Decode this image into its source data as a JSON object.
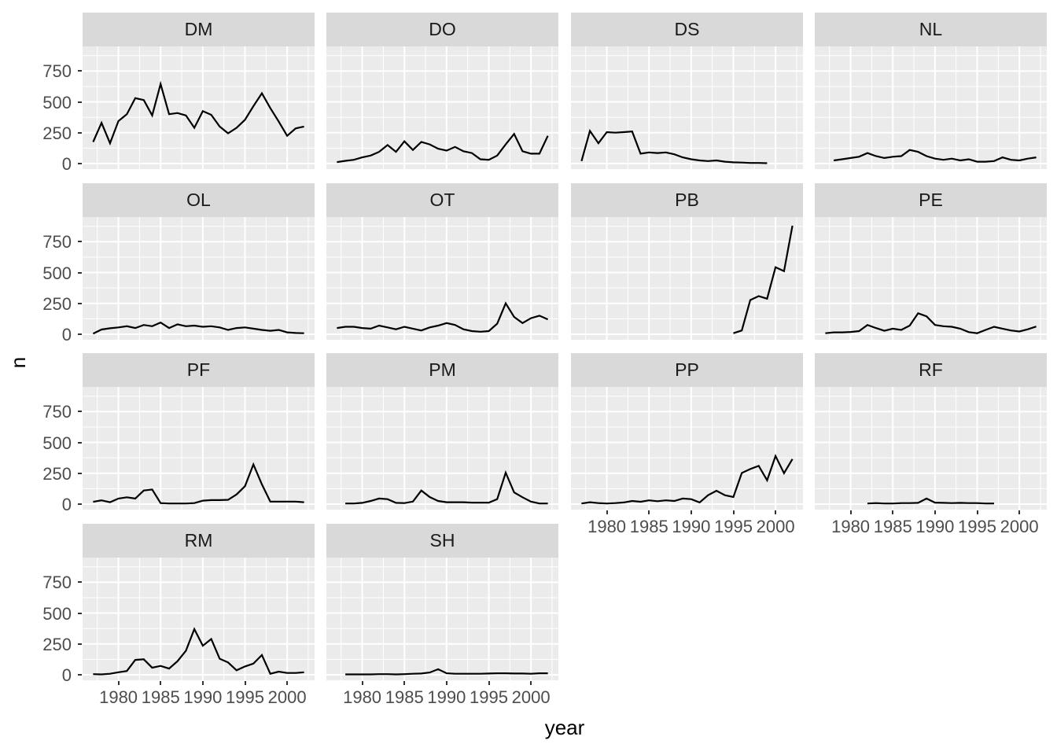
{
  "figure": {
    "background": "#ffffff",
    "kind": "faceted line chart (ggplot2 style)"
  },
  "axes": {
    "y_title": "n",
    "x_title": "year",
    "y_tick_labels": [
      "750",
      "500",
      "250",
      "0"
    ],
    "x_tick_labels": [
      "1980",
      "1985",
      "1990",
      "1995",
      "2000"
    ]
  },
  "style": {
    "panel_bg": "#EBEBEB",
    "strip_bg": "#D9D9D9",
    "strip_text_color": "#1A1A1A",
    "axis_text_color": "#4D4D4D",
    "tick_mark_color": "#333333",
    "grid_major_color": "#FFFFFF",
    "grid_minor_color": "#FFFFFF",
    "line_color": "#000000"
  },
  "chart_data": {
    "type": "line",
    "facet_variable": "species",
    "xlabel": "year",
    "ylabel": "n",
    "x_domain": [
      1975.75,
      2003.25
    ],
    "y_domain": [
      -45,
      950
    ],
    "x_major_ticks": [
      1980,
      1985,
      1990,
      1995,
      2000
    ],
    "x_minor_ticks": [
      1977.5,
      1982.5,
      1987.5,
      1992.5,
      1997.5,
      2002.5
    ],
    "y_major_ticks": [
      0,
      250,
      500,
      750
    ],
    "y_minor_ticks": [
      125,
      375,
      625,
      875
    ],
    "grid": true,
    "legend": "none",
    "facets": [
      {
        "label": "DM",
        "start_year": 1977,
        "values": [
          175,
          330,
          165,
          345,
          400,
          530,
          515,
          390,
          645,
          400,
          410,
          390,
          290,
          425,
          395,
          300,
          245,
          290,
          355,
          465,
          570,
          450,
          340,
          225,
          285,
          300
        ]
      },
      {
        "label": "DO",
        "start_year": 1977,
        "values": [
          12,
          22,
          30,
          50,
          65,
          95,
          150,
          95,
          180,
          110,
          175,
          155,
          120,
          105,
          135,
          100,
          85,
          35,
          30,
          65,
          155,
          240,
          100,
          80,
          80,
          225
        ]
      },
      {
        "label": "DS",
        "start_year": 1977,
        "values": [
          20,
          265,
          165,
          255,
          250,
          255,
          260,
          80,
          90,
          85,
          90,
          75,
          50,
          35,
          25,
          20,
          25,
          15,
          10,
          8,
          5,
          5,
          3
        ]
      },
      {
        "label": "NL",
        "start_year": 1978,
        "values": [
          25,
          35,
          45,
          55,
          85,
          60,
          45,
          55,
          60,
          110,
          95,
          60,
          40,
          30,
          40,
          25,
          35,
          15,
          15,
          20,
          50,
          30,
          25,
          40,
          50
        ]
      },
      {
        "label": "OL",
        "start_year": 1977,
        "values": [
          5,
          38,
          48,
          55,
          65,
          50,
          75,
          65,
          95,
          50,
          80,
          65,
          70,
          60,
          65,
          55,
          35,
          50,
          55,
          45,
          35,
          28,
          35,
          15,
          10,
          8
        ]
      },
      {
        "label": "OT",
        "start_year": 1977,
        "values": [
          50,
          60,
          60,
          50,
          45,
          70,
          55,
          40,
          60,
          45,
          30,
          55,
          70,
          90,
          75,
          40,
          25,
          20,
          25,
          85,
          250,
          140,
          90,
          130,
          150,
          120
        ]
      },
      {
        "label": "PB",
        "start_year": 1995,
        "values": [
          8,
          30,
          277,
          309,
          288,
          543,
          511,
          880
        ]
      },
      {
        "label": "PE",
        "start_year": 1977,
        "values": [
          8,
          15,
          15,
          18,
          25,
          75,
          50,
          28,
          45,
          35,
          70,
          170,
          145,
          75,
          65,
          60,
          45,
          17,
          8,
          35,
          60,
          45,
          30,
          22,
          40,
          62
        ]
      },
      {
        "label": "PF",
        "start_year": 1977,
        "values": [
          18,
          30,
          15,
          45,
          55,
          45,
          110,
          118,
          8,
          5,
          5,
          5,
          8,
          28,
          32,
          32,
          35,
          78,
          145,
          322,
          160,
          20,
          20,
          20,
          20,
          15
        ]
      },
      {
        "label": "PM",
        "start_year": 1978,
        "values": [
          5,
          5,
          10,
          25,
          45,
          40,
          10,
          8,
          20,
          110,
          57,
          25,
          15,
          15,
          15,
          12,
          12,
          12,
          40,
          255,
          95,
          55,
          20,
          5,
          5
        ]
      },
      {
        "label": "PP",
        "start_year": 1977,
        "values": [
          5,
          15,
          8,
          5,
          8,
          13,
          25,
          19,
          30,
          23,
          30,
          25,
          45,
          40,
          13,
          72,
          108,
          72,
          57,
          252,
          284,
          310,
          193,
          390,
          250,
          365
        ]
      },
      {
        "label": "RF",
        "start_year": 1982,
        "values": [
          5,
          8,
          5,
          5,
          8,
          8,
          10,
          45,
          12,
          10,
          8,
          10,
          8,
          8,
          5,
          5
        ]
      },
      {
        "label": "RM",
        "start_year": 1977,
        "values": [
          5,
          3,
          8,
          20,
          30,
          120,
          125,
          57,
          72,
          50,
          110,
          195,
          370,
          235,
          290,
          130,
          100,
          36,
          67,
          90,
          160,
          8,
          25,
          14,
          14,
          20
        ]
      },
      {
        "label": "SH",
        "start_year": 1978,
        "values": [
          3,
          3,
          3,
          3,
          5,
          5,
          3,
          5,
          8,
          10,
          18,
          45,
          12,
          8,
          8,
          8,
          8,
          10,
          12,
          12,
          10,
          10,
          8,
          12,
          12
        ]
      }
    ]
  }
}
